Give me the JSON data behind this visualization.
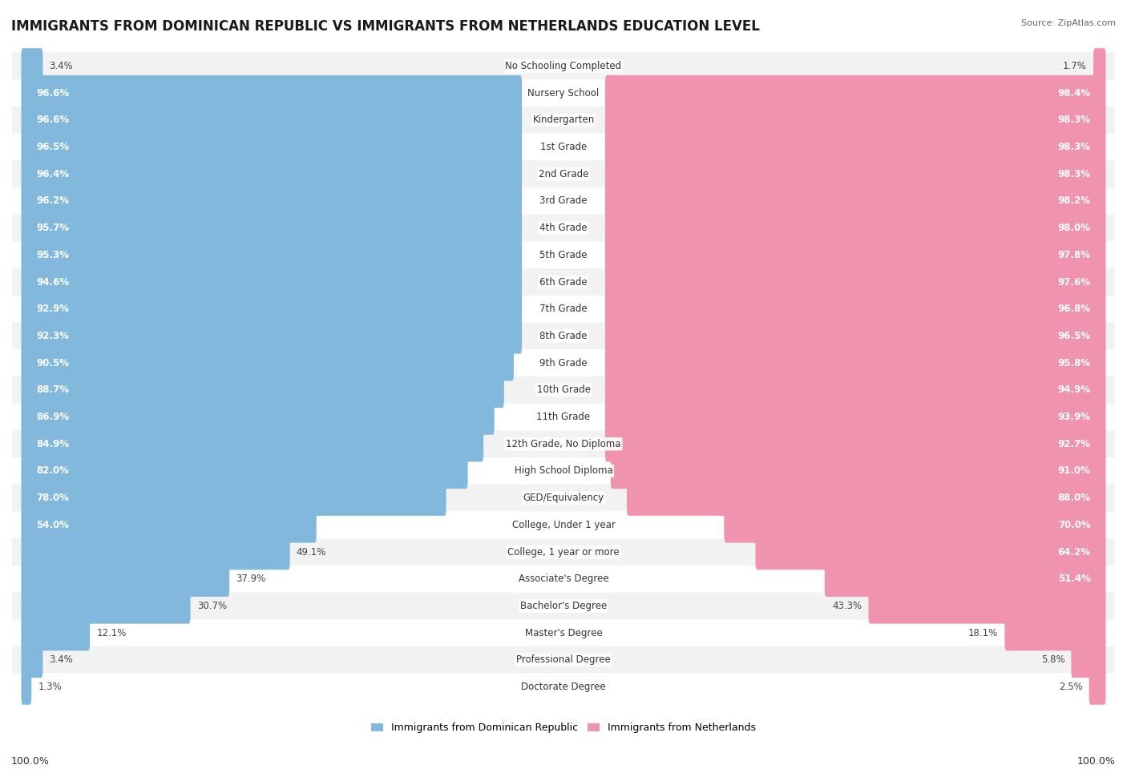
{
  "title": "IMMIGRANTS FROM DOMINICAN REPUBLIC VS IMMIGRANTS FROM NETHERLANDS EDUCATION LEVEL",
  "source": "Source: ZipAtlas.com",
  "categories": [
    "No Schooling Completed",
    "Nursery School",
    "Kindergarten",
    "1st Grade",
    "2nd Grade",
    "3rd Grade",
    "4th Grade",
    "5th Grade",
    "6th Grade",
    "7th Grade",
    "8th Grade",
    "9th Grade",
    "10th Grade",
    "11th Grade",
    "12th Grade, No Diploma",
    "High School Diploma",
    "GED/Equivalency",
    "College, Under 1 year",
    "College, 1 year or more",
    "Associate's Degree",
    "Bachelor's Degree",
    "Master's Degree",
    "Professional Degree",
    "Doctorate Degree"
  ],
  "left_values": [
    3.4,
    96.6,
    96.6,
    96.5,
    96.4,
    96.2,
    95.7,
    95.3,
    94.6,
    92.9,
    92.3,
    90.5,
    88.7,
    86.9,
    84.9,
    82.0,
    78.0,
    54.0,
    49.1,
    37.9,
    30.7,
    12.1,
    3.4,
    1.3
  ],
  "right_values": [
    1.7,
    98.4,
    98.3,
    98.3,
    98.3,
    98.2,
    98.0,
    97.8,
    97.6,
    96.8,
    96.5,
    95.8,
    94.9,
    93.9,
    92.7,
    91.0,
    88.0,
    70.0,
    64.2,
    51.4,
    43.3,
    18.1,
    5.8,
    2.5
  ],
  "left_color": "#82B8DC",
  "right_color": "#F093AE",
  "row_color_even": "#f2f2f2",
  "row_color_odd": "#ffffff",
  "legend_left": "Immigrants from Dominican Republic",
  "legend_right": "Immigrants from Netherlands",
  "left_footer": "100.0%",
  "right_footer": "100.0%",
  "title_fontsize": 12,
  "source_fontsize": 8,
  "label_fontsize": 8.5,
  "category_fontsize": 8.5,
  "footer_fontsize": 9
}
